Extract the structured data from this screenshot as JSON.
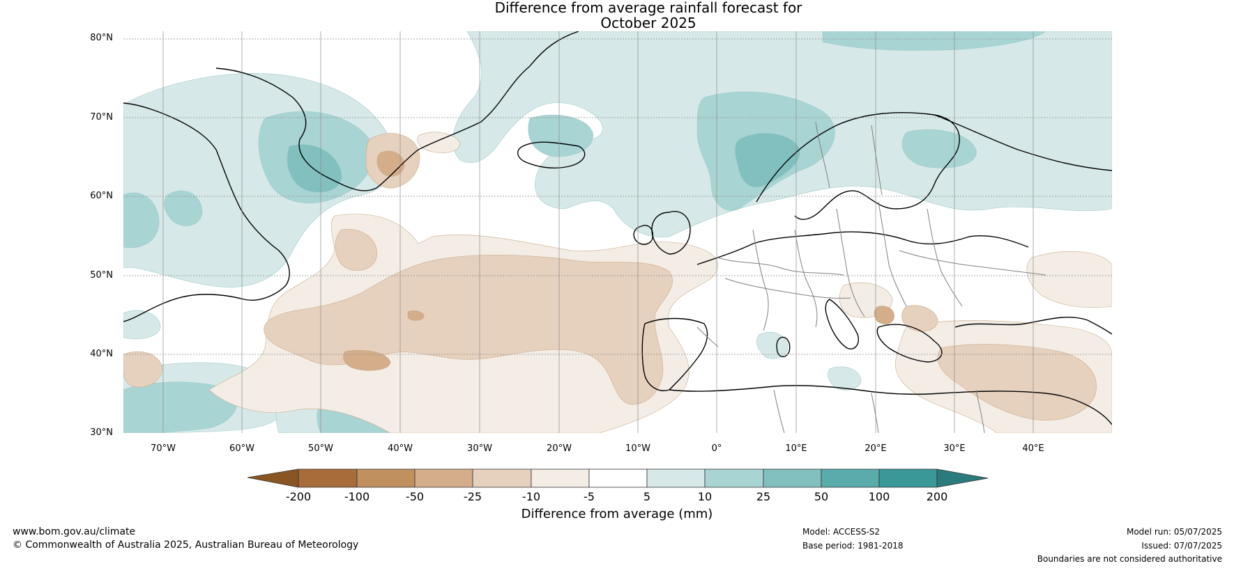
{
  "title": {
    "line1": "Difference from average rainfall forecast for",
    "line2": "October 2025"
  },
  "map": {
    "lat_labels": [
      "80°N",
      "70°N",
      "60°N",
      "50°N",
      "40°N",
      "30°N"
    ],
    "lon_labels": [
      "70°W",
      "60°W",
      "50°W",
      "40°W",
      "30°W",
      "20°W",
      "10°W",
      "0°",
      "10°E",
      "20°E",
      "30°E",
      "40°E"
    ]
  },
  "colorbar": {
    "ticks": [
      "-200",
      "-100",
      "-50",
      "-25",
      "-10",
      "-5",
      "5",
      "10",
      "25",
      "50",
      "100",
      "200"
    ],
    "colors": [
      "#8b5523",
      "#a86c3a",
      "#c1905f",
      "#d4ae8b",
      "#e6d1be",
      "#f3ede6",
      "#ffffff",
      "#d6e9e8",
      "#a9d4d4",
      "#82c0c0",
      "#5aabab",
      "#3a9898",
      "#2a7b7b"
    ],
    "label": "Difference from average (mm)"
  },
  "footer": {
    "website": "www.bom.gov.au/climate",
    "copyright": "© Commonwealth of Australia 2025, Australian Bureau of Meteorology",
    "model": "Model: ACCESS-S2",
    "base_period": "Base period: 1981-2018",
    "model_run": "Model run: 05/07/2025",
    "issued": "Issued: 07/07/2025",
    "disclaimer": "Boundaries are not considered authoritative"
  }
}
